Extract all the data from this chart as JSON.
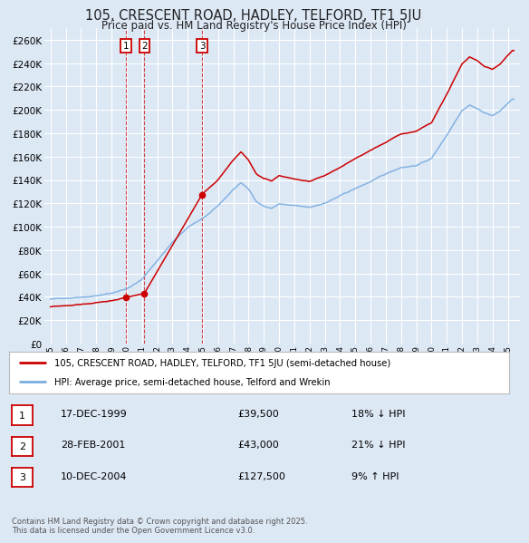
{
  "title": "105, CRESCENT ROAD, HADLEY, TELFORD, TF1 5JU",
  "subtitle": "Price paid vs. HM Land Registry's House Price Index (HPI)",
  "bg_color": "#dde8f5",
  "plot_bg_color": "#dde8f5",
  "grid_color": "#ffffff",
  "red_color": "#cc0000",
  "blue_color": "#7aade0",
  "ylim": [
    0,
    270000
  ],
  "yticks": [
    0,
    20000,
    40000,
    60000,
    80000,
    100000,
    120000,
    140000,
    160000,
    180000,
    200000,
    220000,
    240000,
    260000
  ],
  "sale_year_floats": [
    1999.958,
    2001.163,
    2004.944
  ],
  "sale_prices": [
    39500,
    43000,
    127500
  ],
  "sale_labels": [
    "1",
    "2",
    "3"
  ],
  "legend_entries": [
    "105, CRESCENT ROAD, HADLEY, TELFORD, TF1 5JU (semi-detached house)",
    "HPI: Average price, semi-detached house, Telford and Wrekin"
  ],
  "table_data": [
    [
      "1",
      "17-DEC-1999",
      "£39,500",
      "18% ↓ HPI"
    ],
    [
      "2",
      "28-FEB-2001",
      "£43,000",
      "21% ↓ HPI"
    ],
    [
      "3",
      "10-DEC-2004",
      "£127,500",
      "9% ↑ HPI"
    ]
  ],
  "footer": "Contains HM Land Registry data © Crown copyright and database right 2025.\nThis data is licensed under the Open Government Licence v3.0."
}
